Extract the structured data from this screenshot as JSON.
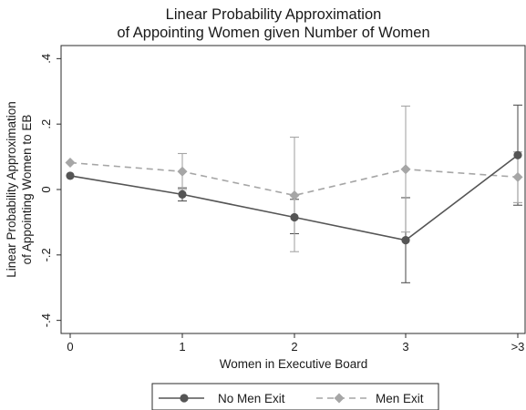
{
  "chart_data": {
    "type": "line",
    "title": "Linear Probability Approximation",
    "subtitle": "of Appointing Women given Number of Women",
    "xlabel": "Women in Executive Board",
    "ylabel_lines": [
      "Linear Probability Approximation",
      "of Appointing Women to EB"
    ],
    "categories": [
      "0",
      "1",
      "2",
      "3",
      ">3"
    ],
    "ylim": [
      -0.44,
      0.44
    ],
    "yticks": [
      {
        "value": 0.4,
        "label": ".4"
      },
      {
        "value": 0.2,
        "label": ".2"
      },
      {
        "value": 0,
        "label": "0"
      },
      {
        "value": -0.2,
        "label": "-.2"
      },
      {
        "value": -0.4,
        "label": "-.4"
      }
    ],
    "grid": false,
    "legend_position": "bottom",
    "series": [
      {
        "name": "No Men Exit",
        "color": "#555555",
        "line_style": "solid",
        "marker": "circle",
        "values": [
          0.042,
          -0.015,
          -0.085,
          -0.155,
          0.105
        ],
        "ci_low": [
          null,
          -0.035,
          -0.135,
          -0.285,
          -0.048
        ],
        "ci_high": [
          null,
          0.005,
          -0.03,
          -0.025,
          0.258
        ]
      },
      {
        "name": "Men Exit",
        "color": "#a6a6a6",
        "line_style": "dashed",
        "marker": "diamond",
        "values": [
          0.082,
          0.055,
          -0.018,
          0.062,
          0.038
        ],
        "ci_low": [
          null,
          0.0,
          -0.19,
          -0.13,
          -0.04
        ],
        "ci_high": [
          null,
          0.11,
          0.16,
          0.255,
          0.115
        ]
      }
    ]
  }
}
